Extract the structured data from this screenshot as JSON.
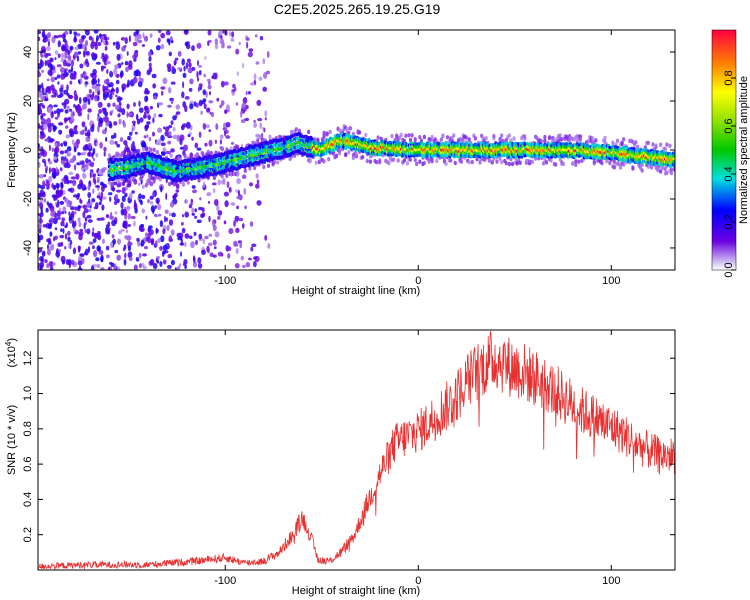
{
  "title": "C2E5.2025.265.19.25.G19",
  "chart_data": [
    {
      "type": "heatmap",
      "name": "spectrogram",
      "xlabel": "Height of straight line (km)",
      "ylabel": "Frequency (Hz)",
      "xlim": [
        -197,
        133
      ],
      "ylim": [
        -49,
        49
      ],
      "xticks": [
        -100,
        0,
        100
      ],
      "yticks": [
        -40,
        -20,
        0,
        20,
        40
      ],
      "ridge": [
        {
          "x": -155,
          "f": -8
        },
        {
          "x": -140,
          "f": -5
        },
        {
          "x": -125,
          "f": -9
        },
        {
          "x": -105,
          "f": -6
        },
        {
          "x": -90,
          "f": -3
        },
        {
          "x": -75,
          "f": 0
        },
        {
          "x": -62,
          "f": 3
        },
        {
          "x": -52,
          "f": 0
        },
        {
          "x": -40,
          "f": 4
        },
        {
          "x": -25,
          "f": 1
        },
        {
          "x": 0,
          "f": 0
        },
        {
          "x": 25,
          "f": 0
        },
        {
          "x": 50,
          "f": 0
        },
        {
          "x": 75,
          "f": 0
        },
        {
          "x": 100,
          "f": -1
        },
        {
          "x": 120,
          "f": -3
        },
        {
          "x": 133,
          "f": -4
        }
      ],
      "colorbar": {
        "label": "Normalized spectral amplitude",
        "range": [
          0,
          1
        ],
        "ticks": [
          "0.0",
          "0.2",
          "0.4",
          "0.6",
          "0.8"
        ]
      }
    },
    {
      "type": "line",
      "name": "snr",
      "xlabel": "Height of straight line (km)",
      "ylabel": "SNR (10 * v/v)",
      "yscale_label": "(x10",
      "yscale_exp": "4",
      "yscale_close": ")",
      "xlim": [
        -197,
        133
      ],
      "ylim": [
        0,
        1.36
      ],
      "xticks": [
        -100,
        0,
        100
      ],
      "yticks": [
        "0.2",
        "0.4",
        "0.6",
        "0.8",
        "1.0",
        "1.2"
      ],
      "color": "#e83030",
      "series": [
        {
          "x": -197,
          "y": 0.02
        },
        {
          "x": -170,
          "y": 0.03
        },
        {
          "x": -140,
          "y": 0.03
        },
        {
          "x": -115,
          "y": 0.05
        },
        {
          "x": -100,
          "y": 0.07
        },
        {
          "x": -90,
          "y": 0.04
        },
        {
          "x": -80,
          "y": 0.05
        },
        {
          "x": -72,
          "y": 0.1
        },
        {
          "x": -65,
          "y": 0.2
        },
        {
          "x": -60,
          "y": 0.3
        },
        {
          "x": -56,
          "y": 0.2
        },
        {
          "x": -52,
          "y": 0.06
        },
        {
          "x": -46,
          "y": 0.05
        },
        {
          "x": -40,
          "y": 0.1
        },
        {
          "x": -33,
          "y": 0.2
        },
        {
          "x": -27,
          "y": 0.36
        },
        {
          "x": -20,
          "y": 0.54
        },
        {
          "x": -12,
          "y": 0.72
        },
        {
          "x": -5,
          "y": 0.76
        },
        {
          "x": 2,
          "y": 0.8
        },
        {
          "x": 10,
          "y": 0.88
        },
        {
          "x": 18,
          "y": 0.96
        },
        {
          "x": 26,
          "y": 1.08
        },
        {
          "x": 33,
          "y": 1.15
        },
        {
          "x": 40,
          "y": 1.2
        },
        {
          "x": 46,
          "y": 1.16
        },
        {
          "x": 55,
          "y": 1.12
        },
        {
          "x": 65,
          "y": 1.06
        },
        {
          "x": 75,
          "y": 0.98
        },
        {
          "x": 85,
          "y": 0.9
        },
        {
          "x": 95,
          "y": 0.84
        },
        {
          "x": 105,
          "y": 0.78
        },
        {
          "x": 115,
          "y": 0.7
        },
        {
          "x": 125,
          "y": 0.65
        },
        {
          "x": 133,
          "y": 0.65
        }
      ]
    }
  ]
}
